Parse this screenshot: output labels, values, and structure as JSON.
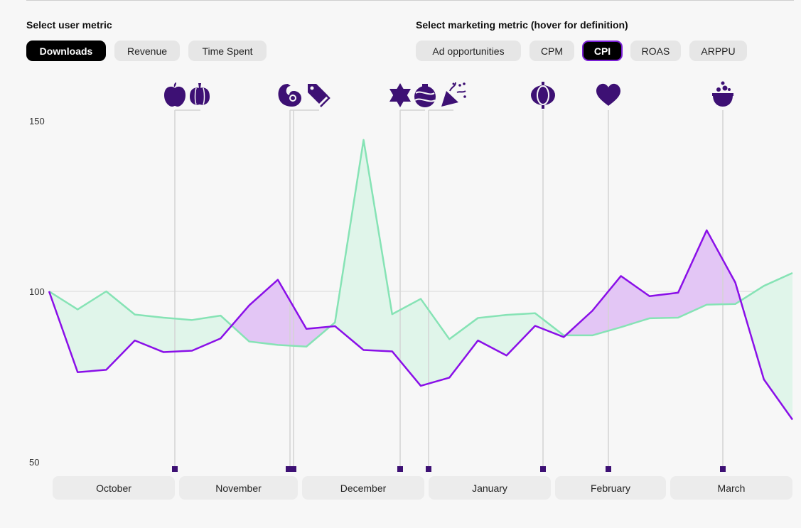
{
  "user_metric": {
    "label": "Select user metric",
    "options": [
      "Downloads",
      "Revenue",
      "Time Spent"
    ],
    "selected": "Downloads"
  },
  "marketing_metric": {
    "label": "Select marketing metric (hover for definition)",
    "options": [
      "Ad opportunities",
      "CPM",
      "CPI",
      "ROAS",
      "ARPPU"
    ],
    "selected": "CPI"
  },
  "months": [
    "October",
    "November",
    "December",
    "January",
    "February",
    "March"
  ],
  "colors": {
    "green_line": "#86e3b5",
    "green_fill": "#e0f5ea",
    "purple_line": "#8a0fe8",
    "purple_fill": "#e3c6f5",
    "event_icon": "#3d1074",
    "grid": "#d9d9d9"
  },
  "events": [
    {
      "icons": [
        "apple-icon",
        "pumpkin-icon"
      ],
      "marker_count": 1
    },
    {
      "icons": [
        "turkey-icon",
        "price-tag-icon"
      ],
      "marker_count": 2
    },
    {
      "icons": [
        "star-of-david-icon"
      ],
      "marker_count": 1
    },
    {
      "icons": [
        "ornament-icon",
        "party-popper-icon"
      ],
      "marker_count": 1
    },
    {
      "icons": [
        "lantern-icon"
      ],
      "marker_count": 1
    },
    {
      "icons": [
        "heart-icon"
      ],
      "marker_count": 1
    },
    {
      "icons": [
        "cauldron-icon"
      ],
      "marker_count": 1
    }
  ],
  "chart_data": {
    "type": "area",
    "yticks": [
      150,
      100,
      50
    ],
    "ylim": [
      50,
      150
    ],
    "grid": "horizontal line at 100",
    "series": [
      {
        "values": [
          100,
          94.7,
          100,
          93.2,
          92.3,
          91.6,
          92.9,
          85.3,
          84.3,
          83.8,
          90.9,
          144.4,
          93.3,
          97.8,
          86,
          92.2,
          93.1,
          93.6,
          87.1,
          87.1,
          89.5,
          92.1,
          92.3,
          96.1,
          96.3,
          101.6,
          105.4
        ]
      },
      {
        "values": [
          100,
          76.3,
          77,
          85.6,
          82.2,
          82.6,
          86.2,
          95.9,
          103.4,
          89,
          89.8,
          82.8,
          82.4,
          72.3,
          74.7,
          85.6,
          81.2,
          89.9,
          86.6,
          94.3,
          104.5,
          98.6,
          99.6,
          117.9,
          102.6,
          74.2,
          62.4
        ]
      }
    ]
  }
}
